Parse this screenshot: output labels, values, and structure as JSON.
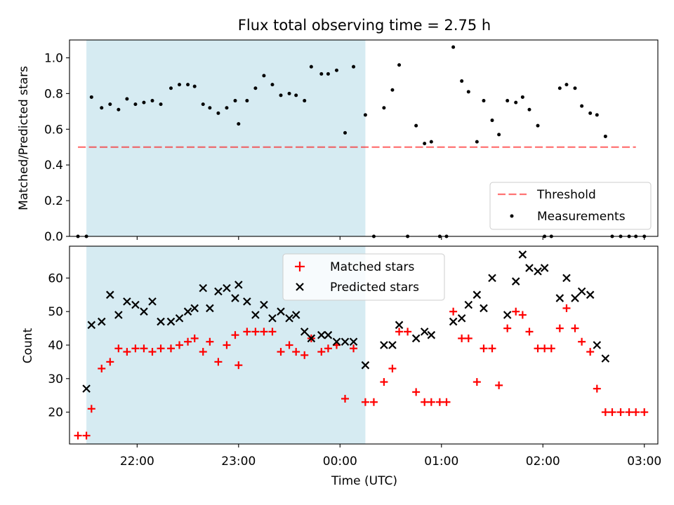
{
  "figure": {
    "title": "Flux total observing time = 2.75 h",
    "xlabel": "Time (UTC)",
    "x_tick_labels": [
      "22:00",
      "23:00",
      "00:00",
      "01:00",
      "02:00",
      "03:00"
    ]
  },
  "colors": {
    "shade": "#add8e6",
    "threshold": "#ff0000",
    "measurements": "#000000",
    "matched": "#ff0000",
    "predicted": "#000000"
  },
  "chart_data": [
    {
      "type": "scatter",
      "panel": "top",
      "ylabel": "Matched/Predicted stars",
      "ylim": [
        0,
        1.1
      ],
      "yticks": [
        0.0,
        0.2,
        0.4,
        0.6,
        0.8,
        1.0
      ],
      "ytick_labels": [
        "0.0",
        "0.2",
        "0.4",
        "0.6",
        "0.8",
        "1.0"
      ],
      "xlim": [
        "21:20",
        "03:08"
      ],
      "xticks": [
        "22:00",
        "23:00",
        "00:00",
        "01:00",
        "02:00",
        "03:00"
      ],
      "shaded_span": [
        "21:30",
        "00:15"
      ],
      "threshold": {
        "name": "Threshold",
        "y": 0.5,
        "x": [
          "21:25",
          "02:55"
        ],
        "style": "dashed"
      },
      "legend": {
        "location": "lower right",
        "entries": [
          "Threshold",
          "Measurements"
        ]
      },
      "grid": false,
      "series": [
        {
          "name": "Measurements",
          "marker": "dot",
          "x": [
            "21:25",
            "21:30",
            "21:33",
            "21:39",
            "21:44",
            "21:49",
            "21:54",
            "21:59",
            "22:04",
            "22:09",
            "22:14",
            "22:20",
            "22:25",
            "22:30",
            "22:34",
            "22:39",
            "22:43",
            "22:48",
            "22:53",
            "22:58",
            "23:00",
            "23:05",
            "23:10",
            "23:15",
            "23:20",
            "23:25",
            "23:30",
            "23:34",
            "23:39",
            "23:43",
            "23:49",
            "23:53",
            "23:58",
            "00:03",
            "00:08",
            "00:15",
            "00:20",
            "00:26",
            "00:31",
            "00:35",
            "00:40",
            "00:45",
            "00:50",
            "00:54",
            "00:59",
            "01:03",
            "01:07",
            "01:12",
            "01:16",
            "01:21",
            "01:25",
            "01:30",
            "01:34",
            "01:39",
            "01:44",
            "01:48",
            "01:52",
            "01:57",
            "02:01",
            "02:05",
            "02:10",
            "02:14",
            "02:19",
            "02:23",
            "02:28",
            "02:32",
            "02:37",
            "02:41",
            "02:46",
            "02:51",
            "02:55",
            "03:00"
          ],
          "y": [
            0.0,
            0.0,
            0.78,
            0.72,
            0.74,
            0.71,
            0.77,
            0.74,
            0.75,
            0.76,
            0.74,
            0.83,
            0.85,
            0.85,
            0.84,
            0.74,
            0.72,
            0.69,
            0.72,
            0.76,
            0.63,
            0.76,
            0.83,
            0.9,
            0.85,
            0.79,
            0.8,
            0.79,
            0.76,
            0.95,
            0.91,
            0.91,
            0.93,
            0.58,
            0.95,
            0.68,
            0.0,
            0.72,
            0.82,
            0.96,
            0.0,
            0.62,
            0.52,
            0.53,
            0.0,
            0.0,
            1.06,
            0.87,
            0.81,
            0.53,
            0.76,
            0.65,
            0.57,
            0.76,
            0.75,
            0.78,
            0.71,
            0.62,
            0.0,
            0.0,
            0.83,
            0.85,
            0.83,
            0.73,
            0.69,
            0.68,
            0.56,
            0.0,
            0.0,
            0.0,
            0.0,
            0.0
          ]
        }
      ]
    },
    {
      "type": "scatter",
      "panel": "bottom",
      "ylabel": "Count",
      "ylim": [
        10.5,
        69.5
      ],
      "yticks": [
        20,
        30,
        40,
        50,
        60
      ],
      "ytick_labels": [
        "20",
        "30",
        "40",
        "50",
        "60"
      ],
      "xlim": [
        "21:20",
        "03:08"
      ],
      "xticks": [
        "22:00",
        "23:00",
        "00:00",
        "01:00",
        "02:00",
        "03:00"
      ],
      "xlabel": "Time (UTC)",
      "shaded_span": [
        "21:30",
        "00:15"
      ],
      "legend": {
        "location": "upper center",
        "entries": [
          "Matched stars",
          "Predicted stars"
        ]
      },
      "grid": false,
      "series": [
        {
          "name": "Matched stars",
          "marker": "plus",
          "x": [
            "21:25",
            "21:30",
            "21:33",
            "21:39",
            "21:44",
            "21:49",
            "21:54",
            "21:59",
            "22:04",
            "22:09",
            "22:14",
            "22:20",
            "22:25",
            "22:30",
            "22:34",
            "22:39",
            "22:43",
            "22:48",
            "22:53",
            "22:58",
            "23:00",
            "23:05",
            "23:10",
            "23:15",
            "23:20",
            "23:25",
            "23:30",
            "23:34",
            "23:39",
            "23:43",
            "23:49",
            "23:53",
            "23:58",
            "00:03",
            "00:08",
            "00:15",
            "00:20",
            "00:26",
            "00:31",
            "00:35",
            "00:40",
            "00:45",
            "00:50",
            "00:54",
            "00:59",
            "01:03",
            "01:07",
            "01:12",
            "01:16",
            "01:21",
            "01:25",
            "01:30",
            "01:34",
            "01:39",
            "01:44",
            "01:48",
            "01:52",
            "01:57",
            "02:01",
            "02:05",
            "02:10",
            "02:14",
            "02:19",
            "02:23",
            "02:28",
            "02:32",
            "02:37",
            "02:41",
            "02:46",
            "02:51",
            "02:55",
            "03:00"
          ],
          "y": [
            13,
            13,
            21,
            33,
            35,
            39,
            38,
            39,
            39,
            38,
            39,
            39,
            40,
            41,
            42,
            38,
            41,
            35,
            40,
            43,
            34,
            44,
            44,
            44,
            44,
            38,
            40,
            38,
            37,
            42,
            38,
            39,
            40,
            24,
            39,
            23,
            23,
            29,
            33,
            44,
            44,
            26,
            23,
            23,
            23,
            23,
            50,
            42,
            42,
            29,
            39,
            39,
            28,
            45,
            50,
            49,
            44,
            39,
            39,
            39,
            45,
            51,
            45,
            41,
            38,
            27,
            20,
            20,
            20,
            20,
            20,
            20
          ]
        },
        {
          "name": "Predicted stars",
          "marker": "x",
          "x": [
            "21:30",
            "21:33",
            "21:39",
            "21:44",
            "21:49",
            "21:54",
            "21:59",
            "22:04",
            "22:09",
            "22:14",
            "22:20",
            "22:25",
            "22:30",
            "22:34",
            "22:39",
            "22:43",
            "22:48",
            "22:53",
            "22:58",
            "23:00",
            "23:05",
            "23:10",
            "23:15",
            "23:20",
            "23:25",
            "23:30",
            "23:34",
            "23:39",
            "23:43",
            "23:49",
            "23:53",
            "23:58",
            "00:03",
            "00:08",
            "00:15",
            "00:26",
            "00:31",
            "00:35",
            "00:45",
            "00:50",
            "00:54",
            "01:07",
            "01:12",
            "01:16",
            "01:21",
            "01:25",
            "01:30",
            "01:39",
            "01:44",
            "01:48",
            "01:52",
            "01:57",
            "02:01",
            "02:10",
            "02:14",
            "02:19",
            "02:23",
            "02:28",
            "02:32",
            "02:37"
          ],
          "y": [
            27,
            46,
            47,
            55,
            49,
            53,
            52,
            50,
            53,
            47,
            47,
            48,
            50,
            51,
            57,
            51,
            56,
            57,
            54,
            58,
            53,
            49,
            52,
            48,
            50,
            48,
            49,
            44,
            42,
            43,
            43,
            41,
            41,
            41,
            34,
            40,
            40,
            46,
            42,
            44,
            43,
            47,
            48,
            52,
            55,
            51,
            60,
            49,
            59,
            67,
            63,
            62,
            63,
            54,
            60,
            54,
            56,
            55,
            40,
            36
          ]
        }
      ]
    }
  ]
}
